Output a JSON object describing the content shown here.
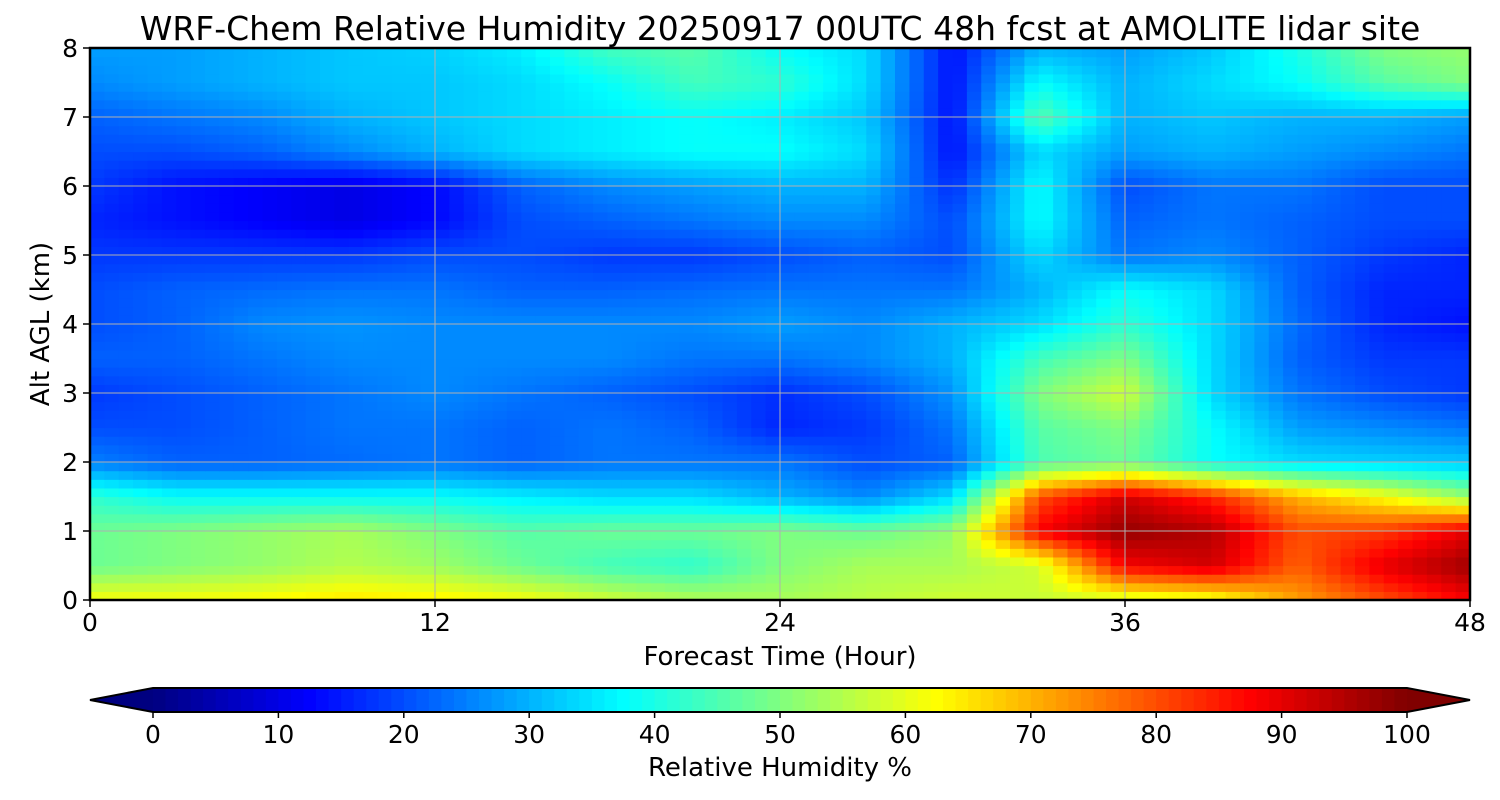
{
  "chart_data": {
    "type": "heatmap",
    "title": "WRF-Chem Relative Humidity 20250917 00UTC 48h fcst at AMOLITE lidar site",
    "xlabel": "Forecast Time (Hour)",
    "ylabel": "Alt AGL (km)",
    "xlim": [
      0,
      48
    ],
    "ylim": [
      0,
      8
    ],
    "xticks": [
      0,
      12,
      24,
      36,
      48
    ],
    "yticks": [
      0,
      1,
      2,
      3,
      4,
      5,
      6,
      7,
      8
    ],
    "grid": true,
    "colormap": "jet",
    "colorbar": {
      "label": "Relative Humidity %",
      "range": [
        0,
        100
      ],
      "ticks": [
        0,
        10,
        20,
        30,
        40,
        50,
        60,
        70,
        80,
        90,
        100
      ],
      "extend": "both"
    },
    "x": [
      0,
      3,
      6,
      9,
      12,
      15,
      18,
      21,
      24,
      27,
      30,
      33,
      36,
      39,
      42,
      45,
      48
    ],
    "y": [
      0,
      0.5,
      1,
      1.5,
      2,
      2.5,
      3,
      3.5,
      4,
      4.5,
      5,
      5.5,
      6,
      6.5,
      7,
      7.5,
      8
    ],
    "z": [
      [
        62,
        62,
        63,
        65,
        64,
        62,
        58,
        55,
        54,
        56,
        58,
        57,
        58,
        60,
        72,
        80,
        88
      ],
      [
        48,
        50,
        52,
        55,
        53,
        48,
        44,
        42,
        50,
        54,
        54,
        58,
        88,
        92,
        78,
        90,
        97
      ],
      [
        48,
        50,
        52,
        54,
        50,
        46,
        48,
        48,
        50,
        48,
        52,
        88,
        98,
        95,
        80,
        82,
        90
      ],
      [
        42,
        38,
        38,
        38,
        38,
        36,
        34,
        34,
        30,
        26,
        34,
        80,
        92,
        84,
        70,
        62,
        52
      ],
      [
        25,
        22,
        22,
        23,
        24,
        22,
        24,
        24,
        24,
        20,
        22,
        45,
        48,
        38,
        34,
        33,
        32
      ],
      [
        20,
        20,
        22,
        24,
        24,
        22,
        24,
        22,
        16,
        18,
        24,
        46,
        50,
        38,
        28,
        26,
        24
      ],
      [
        18,
        20,
        22,
        24,
        26,
        24,
        22,
        20,
        17,
        20,
        27,
        50,
        58,
        34,
        24,
        20,
        18
      ],
      [
        22,
        22,
        24,
        26,
        26,
        26,
        26,
        24,
        24,
        26,
        30,
        44,
        50,
        34,
        22,
        18,
        18
      ],
      [
        20,
        22,
        26,
        27,
        26,
        26,
        26,
        26,
        28,
        26,
        30,
        34,
        42,
        34,
        23,
        16,
        14
      ],
      [
        20,
        22,
        23,
        24,
        24,
        22,
        22,
        23,
        24,
        24,
        24,
        30,
        38,
        34,
        22,
        16,
        16
      ],
      [
        18,
        18,
        18,
        18,
        20,
        20,
        18,
        18,
        20,
        22,
        20,
        34,
        24,
        26,
        22,
        18,
        16
      ],
      [
        16,
        14,
        12,
        10,
        13,
        20,
        22,
        24,
        26,
        26,
        20,
        38,
        22,
        24,
        22,
        20,
        20
      ],
      [
        18,
        14,
        12,
        10,
        13,
        22,
        26,
        28,
        30,
        30,
        17,
        38,
        20,
        24,
        24,
        20,
        20
      ],
      [
        20,
        20,
        22,
        26,
        30,
        34,
        36,
        38,
        38,
        34,
        14,
        34,
        28,
        30,
        28,
        26,
        24
      ],
      [
        22,
        24,
        26,
        30,
        32,
        34,
        36,
        38,
        36,
        32,
        14,
        46,
        30,
        32,
        30,
        30,
        28
      ],
      [
        26,
        28,
        30,
        32,
        32,
        34,
        38,
        44,
        42,
        34,
        14,
        38,
        30,
        34,
        38,
        46,
        50
      ],
      [
        28,
        28,
        30,
        32,
        33,
        36,
        44,
        46,
        38,
        34,
        14,
        30,
        28,
        32,
        40,
        50,
        52
      ]
    ]
  }
}
